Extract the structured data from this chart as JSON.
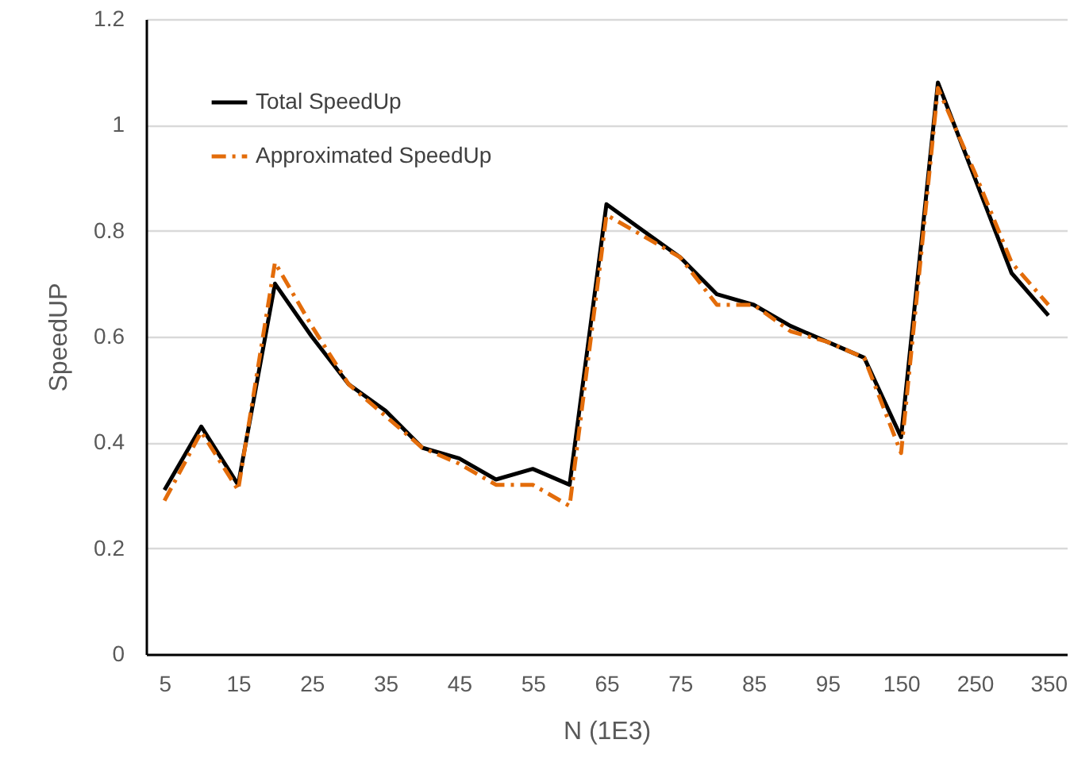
{
  "chart_data": {
    "type": "line",
    "xlabel": "N   (1E3)",
    "ylabel": "SpeedUP",
    "categories": [
      "5",
      null,
      "15",
      null,
      "25",
      null,
      "35",
      null,
      "45",
      null,
      "55",
      null,
      "65",
      null,
      "75",
      null,
      "85",
      null,
      "95",
      null,
      "150",
      null,
      "250",
      null,
      "350"
    ],
    "series": [
      {
        "name": "Total SpeedUp",
        "color": "#000000",
        "line_style": "solid",
        "values": [
          0.31,
          0.43,
          0.32,
          0.7,
          0.6,
          0.51,
          0.46,
          0.39,
          0.37,
          0.33,
          0.35,
          0.32,
          0.85,
          0.8,
          0.75,
          0.68,
          0.66,
          0.62,
          0.59,
          0.56,
          0.41,
          1.08,
          0.9,
          0.72,
          0.64
        ]
      },
      {
        "name": "Approximated SpeedUp",
        "color": "#e36c0a",
        "line_style": "dashed",
        "values": [
          0.29,
          0.42,
          0.31,
          0.74,
          0.62,
          0.51,
          0.45,
          0.39,
          0.36,
          0.32,
          0.32,
          0.28,
          0.83,
          0.79,
          0.75,
          0.66,
          0.66,
          0.61,
          0.59,
          0.56,
          0.38,
          1.07,
          0.91,
          0.74,
          0.66
        ]
      }
    ],
    "ylim": [
      0,
      1.2
    ],
    "yticks": [
      0,
      0.2,
      0.4,
      0.6,
      0.8,
      1,
      1.2
    ],
    "grid": "y",
    "legend": "top left",
    "marker": "none"
  }
}
